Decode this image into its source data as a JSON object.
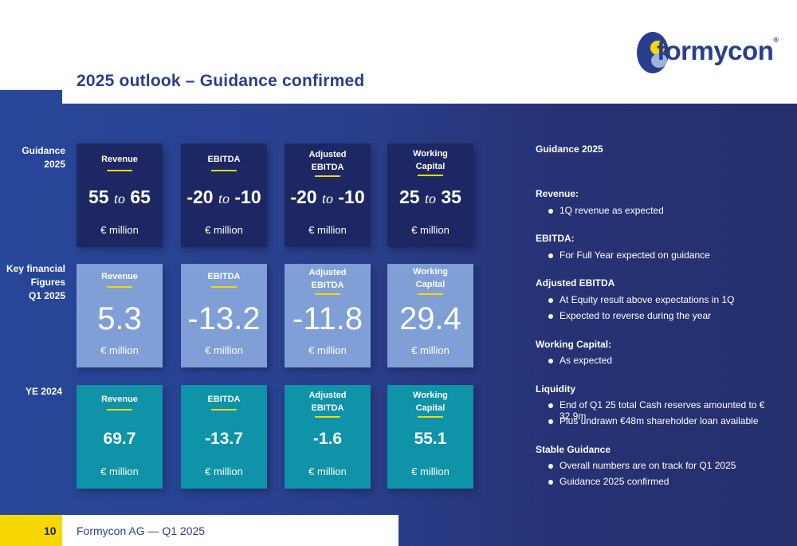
{
  "header": {
    "title": "2025 outlook – Guidance confirmed",
    "logo_text": "formycon",
    "logo_reg": "®"
  },
  "colors": {
    "brand_blue": "#2a3e8f",
    "accent_yellow": "#f6d800",
    "guidance_card": "#1d2763",
    "q1_card": "#7f9fd6",
    "ye_card": "#0e93a9"
  },
  "rows": [
    {
      "label_lines": [
        "Guidance",
        "2025"
      ],
      "cards": [
        {
          "label_lines": [
            "Revenue"
          ],
          "from": "55",
          "to_word": "to",
          "to": "65",
          "unit": "€ million"
        },
        {
          "label_lines": [
            "EBITDA"
          ],
          "from": "-20",
          "to_word": "to",
          "to": "-10",
          "unit": "€ million"
        },
        {
          "label_lines": [
            "Adjusted",
            "EBITDA"
          ],
          "from": "-20",
          "to_word": "to",
          "to": "-10",
          "unit": "€ million"
        },
        {
          "label_lines": [
            "Working",
            "Capital"
          ],
          "from": "25",
          "to_word": "to",
          "to": "35",
          "unit": "€ million"
        }
      ]
    },
    {
      "label_lines": [
        "Key financial",
        "Figures",
        "Q1 2025"
      ],
      "cards": [
        {
          "label_lines": [
            "Revenue"
          ],
          "value": "5.3",
          "unit": "€ million"
        },
        {
          "label_lines": [
            "EBITDA"
          ],
          "value": "-13.2",
          "unit": "€ million"
        },
        {
          "label_lines": [
            "Adjusted",
            "EBITDA"
          ],
          "value": "-11.8",
          "unit": "€ million"
        },
        {
          "label_lines": [
            "Working",
            "Capital"
          ],
          "value": "29.4",
          "unit": "€ million"
        }
      ]
    },
    {
      "label_lines": [
        "YE 2024"
      ],
      "cards": [
        {
          "label_lines": [
            "Revenue"
          ],
          "value": "69.7",
          "unit": "€ million"
        },
        {
          "label_lines": [
            "EBITDA"
          ],
          "value": "-13.7",
          "unit": "€ million"
        },
        {
          "label_lines": [
            "Adjusted",
            "EBITDA"
          ],
          "value": "-1.6",
          "unit": "€ million"
        },
        {
          "label_lines": [
            "Working",
            "Capital"
          ],
          "value": "55.1",
          "unit": "€ million"
        }
      ]
    }
  ],
  "panel": {
    "title": "Guidance 2025",
    "sections": [
      {
        "heading": "Revenue:",
        "bullets": [
          "1Q revenue as expected"
        ]
      },
      {
        "heading": "EBITDA:",
        "bullets": [
          "For Full Year expected on guidance"
        ]
      },
      {
        "heading": "Adjusted EBITDA",
        "bullets": [
          "At Equity result above expectations in 1Q",
          "Expected to reverse during the year"
        ]
      },
      {
        "heading": "Working Capital:",
        "bullets": [
          "As expected"
        ]
      },
      {
        "heading": "Liquidity",
        "bullets": [
          "End of Q1 25 total Cash reserves amounted to € 32.9m",
          "Plus undrawn €48m shareholder loan available"
        ]
      },
      {
        "heading": "Stable Guidance",
        "bullets": [
          "Overall numbers are on track for Q1 2025",
          "Guidance 2025 confirmed"
        ]
      }
    ]
  },
  "footer": {
    "page_number": "10",
    "text": "Formycon AG — Q1 2025"
  }
}
